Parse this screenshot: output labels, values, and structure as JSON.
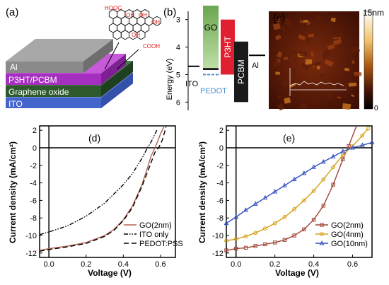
{
  "panel_a": {
    "label": "(a)",
    "layers": [
      "Al",
      "P3HT/PCBM",
      "Graphene oxide",
      "ITO"
    ],
    "layer_colors": [
      "#8a8a8a",
      "#a52fbf",
      "#2e5a2e",
      "#4466cc"
    ],
    "molecule": {
      "groups": [
        "HOOC",
        "OH",
        "OH",
        "OH",
        "OH",
        "COOH"
      ]
    }
  },
  "panel_b": {
    "label": "(b)",
    "ylabel": "Energy (eV)",
    "yticks": [
      "3",
      "4",
      "5",
      "6"
    ],
    "ylim": [
      2.7,
      6.3
    ],
    "materials": [
      {
        "name": "ITO",
        "level": 4.7,
        "color": "#000000"
      },
      {
        "name": "GO",
        "top": 2.4,
        "bottom": 4.8,
        "color": "#5a9c4a"
      },
      {
        "name": "PEDOT",
        "level": 5.0,
        "color": "#4a8fd0"
      },
      {
        "name": "P3HT",
        "top": 3.0,
        "bottom": 5.0,
        "color": "#e02030"
      },
      {
        "name": "PCBM",
        "top": 3.8,
        "bottom": 6.0,
        "color": "#1a1a1a"
      },
      {
        "name": "Al",
        "level": 4.3,
        "color": "#000000"
      }
    ]
  },
  "panel_c": {
    "label": "(c)",
    "scale_max": "15nm",
    "scale_min": "0"
  },
  "chart_data": [
    {
      "type": "line",
      "label": "(d)",
      "xlabel": "Voltage (V)",
      "ylabel": "Current density (mA/cm²)",
      "xlim": [
        -0.05,
        0.68
      ],
      "ylim": [
        -12.5,
        2.5
      ],
      "xticks": [
        "0.0",
        "0.2",
        "0.4",
        "0.6"
      ],
      "yticks": [
        "2",
        "0",
        "-2",
        "-4",
        "-6",
        "-8",
        "-10",
        "-12"
      ],
      "series": [
        {
          "name": "GO(2nm)",
          "color": "#b06050",
          "dash": "none",
          "x": [
            -0.05,
            0.0,
            0.1,
            0.2,
            0.3,
            0.35,
            0.4,
            0.45,
            0.5,
            0.53,
            0.55,
            0.57,
            0.58,
            0.6,
            0.62
          ],
          "y": [
            -11.7,
            -11.5,
            -11.2,
            -10.8,
            -10.0,
            -9.3,
            -8.2,
            -6.6,
            -4.2,
            -2.3,
            -0.9,
            0.0,
            0.5,
            1.6,
            2.8
          ]
        },
        {
          "name": "ITO only",
          "color": "#000000",
          "dash": "6,2,1.5,2,1.5,2",
          "x": [
            -0.05,
            0.0,
            0.1,
            0.2,
            0.3,
            0.4,
            0.45,
            0.5,
            0.53,
            0.55,
            0.58
          ],
          "y": [
            -9.9,
            -9.6,
            -8.9,
            -7.8,
            -6.3,
            -4.2,
            -2.9,
            -1.2,
            0.0,
            0.7,
            2.0
          ]
        },
        {
          "name": "PEDOT:PSS",
          "color": "#000000",
          "dash": "7,4",
          "x": [
            -0.05,
            0.0,
            0.1,
            0.2,
            0.3,
            0.35,
            0.4,
            0.45,
            0.5,
            0.54,
            0.57,
            0.59,
            0.61,
            0.63
          ],
          "y": [
            -11.8,
            -11.6,
            -11.3,
            -10.9,
            -10.1,
            -9.4,
            -8.3,
            -6.8,
            -4.4,
            -2.2,
            -0.5,
            0.0,
            0.9,
            2.4
          ]
        }
      ],
      "legend": "bottom-right"
    },
    {
      "type": "line",
      "label": "(e)",
      "xlabel": "Voltage (V)",
      "ylabel": "Current density (mA/cm²)",
      "xlim": [
        -0.05,
        0.7
      ],
      "ylim": [
        -12.5,
        2.5
      ],
      "xticks": [
        "0.0",
        "0.2",
        "0.4",
        "0.6"
      ],
      "yticks": [
        "2",
        "0",
        "-2",
        "-4",
        "-6",
        "-8",
        "-10",
        "-12"
      ],
      "series": [
        {
          "name": "GO(2nm)",
          "color": "#a04535",
          "marker": "square",
          "x": [
            -0.05,
            0.0,
            0.05,
            0.1,
            0.15,
            0.2,
            0.25,
            0.3,
            0.35,
            0.4,
            0.45,
            0.5,
            0.55,
            0.58,
            0.62
          ],
          "y": [
            -11.7,
            -11.5,
            -11.4,
            -11.2,
            -11.0,
            -10.8,
            -10.5,
            -10.0,
            -9.3,
            -8.2,
            -6.6,
            -4.2,
            -1.3,
            0.2,
            2.6
          ]
        },
        {
          "name": "GO(4nm)",
          "color": "#d4a017",
          "marker": "circle",
          "x": [
            -0.05,
            0.0,
            0.05,
            0.1,
            0.15,
            0.2,
            0.25,
            0.3,
            0.35,
            0.4,
            0.45,
            0.5,
            0.55,
            0.6,
            0.65,
            0.68
          ],
          "y": [
            -10.6,
            -10.4,
            -10.1,
            -9.7,
            -9.2,
            -8.6,
            -7.9,
            -7.0,
            -6.0,
            -4.9,
            -3.6,
            -2.2,
            -0.8,
            0.2,
            1.4,
            2.2
          ]
        },
        {
          "name": "GO(10nm)",
          "color": "#3050c0",
          "marker": "triangle",
          "x": [
            -0.05,
            0.0,
            0.05,
            0.1,
            0.15,
            0.2,
            0.25,
            0.3,
            0.35,
            0.4,
            0.45,
            0.5,
            0.55,
            0.6,
            0.65,
            0.7
          ],
          "y": [
            -8.6,
            -7.9,
            -7.1,
            -6.4,
            -5.7,
            -5.0,
            -4.3,
            -3.6,
            -2.9,
            -2.2,
            -1.6,
            -1.0,
            -0.4,
            0.0,
            0.3,
            0.6
          ]
        }
      ],
      "legend": "bottom-right"
    }
  ]
}
